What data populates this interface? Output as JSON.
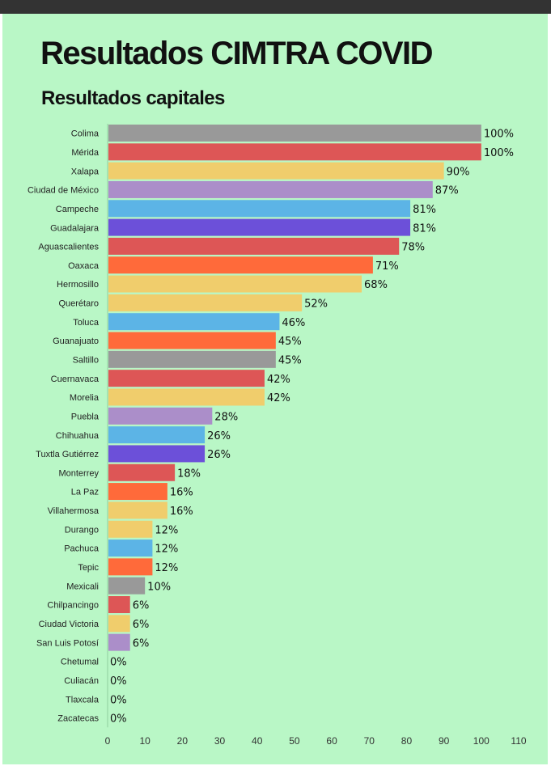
{
  "header": {
    "title": "Resultados CIMTRA COVID",
    "subtitle": "Resultados capitales"
  },
  "chart_data": {
    "type": "bar",
    "orientation": "horizontal",
    "title": "Resultados CIMTRA COVID",
    "subtitle": "Resultados capitales",
    "xlabel": "",
    "ylabel": "",
    "xlim": [
      0,
      110
    ],
    "x_ticks": [
      0,
      10,
      20,
      30,
      40,
      50,
      60,
      70,
      80,
      90,
      100,
      110
    ],
    "grid": false,
    "legend": "none",
    "value_suffix": "%",
    "categories": [
      "Colima",
      "Mérida",
      "Xalapa",
      "Ciudad de México",
      "Campeche",
      "Guadalajara",
      "Aguascalientes",
      "Oaxaca",
      "Hermosillo",
      "Querétaro",
      "Toluca",
      "Guanajuato",
      "Saltillo",
      "Cuernavaca",
      "Morelia",
      "Puebla",
      "Chihuahua",
      "Tuxtla Gutiérrez",
      "Monterrey",
      "La Paz",
      "Villahermosa",
      "Durango",
      "Pachuca",
      "Tepic",
      "Mexicali",
      "Chilpancingo",
      "Ciudad Victoria",
      "San Luis Potosí",
      "Chetumal",
      "Culiacán",
      "Tlaxcala",
      "Zacatecas"
    ],
    "values": [
      100,
      100,
      90,
      87,
      81,
      81,
      78,
      71,
      68,
      52,
      46,
      45,
      45,
      42,
      42,
      28,
      26,
      26,
      18,
      16,
      16,
      12,
      12,
      12,
      10,
      6,
      6,
      6,
      0,
      0,
      0,
      0
    ],
    "colors": [
      "#999999",
      "#dd5656",
      "#f0cd6c",
      "#ab8ec9",
      "#5cb4e6",
      "#6c50d9",
      "#dd5656",
      "#ff6a3a",
      "#f0cd6c",
      "#f0cd6c",
      "#5cb4e6",
      "#ff6a3a",
      "#999999",
      "#dd5656",
      "#f0cd6c",
      "#ab8ec9",
      "#5cb4e6",
      "#6c50d9",
      "#dd5656",
      "#ff6a3a",
      "#f0cd6c",
      "#f0cd6c",
      "#5cb4e6",
      "#ff6a3a",
      "#999999",
      "#dd5656",
      "#f0cd6c",
      "#ab8ec9",
      "#f0cd6c",
      "#f0cd6c",
      "#f0cd6c",
      "#f0cd6c"
    ]
  }
}
